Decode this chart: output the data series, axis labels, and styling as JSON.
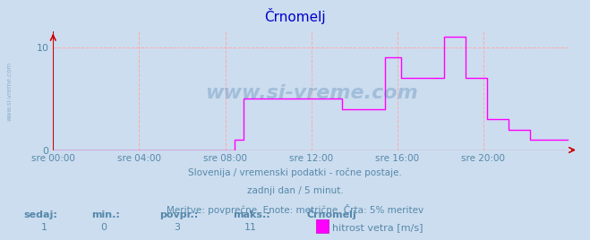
{
  "title": "Črnomelj",
  "title_color": "#0000cc",
  "bg_color": "#ccddef",
  "plot_bg_color": "#ccddef",
  "grid_color": "#ffaaaa",
  "line_color": "#ff00ff",
  "axis_color": "#cc0000",
  "text_color": "#5588aa",
  "watermark_color": "#4477aa",
  "ylim": [
    0,
    11.55
  ],
  "yticks": [
    0,
    10
  ],
  "xlim": [
    0,
    288
  ],
  "subtitle1": "Slovenija / vremenski podatki - ročne postaje.",
  "subtitle2": "zadnji dan / 5 minut.",
  "subtitle3": "Meritve: povprečne  Enote: metrične  Črta: 5% meritev",
  "xtick_labels": [
    "sre 00:00",
    "sre 04:00",
    "sre 08:00",
    "sre 12:00",
    "sre 16:00",
    "sre 20:00"
  ],
  "xtick_positions": [
    0,
    48,
    96,
    144,
    192,
    240
  ],
  "stat_headers": [
    "sedaj:",
    "min.:",
    "povpr.:",
    "maks.:",
    "Črnomelj"
  ],
  "stat_values": [
    "1",
    "0",
    "3",
    "11"
  ],
  "legend_label": "hitrost vetra [m/s]",
  "legend_color": "#ff00ff",
  "watermark": "www.si-vreme.com",
  "side_text": "www.si-vreme.com",
  "data_y": [
    0,
    0,
    0,
    0,
    0,
    0,
    0,
    0,
    0,
    0,
    0,
    0,
    0,
    0,
    0,
    0,
    0,
    0,
    0,
    0,
    0,
    0,
    0,
    0,
    0,
    0,
    0,
    0,
    0,
    0,
    0,
    0,
    0,
    0,
    0,
    0,
    0,
    0,
    0,
    0,
    0,
    0,
    0,
    0,
    0,
    0,
    0,
    0,
    0,
    0,
    0,
    0,
    0,
    0,
    0,
    0,
    0,
    0,
    0,
    0,
    0,
    0,
    0,
    0,
    0,
    0,
    0,
    0,
    0,
    0,
    0,
    0,
    0,
    0,
    0,
    0,
    0,
    0,
    0,
    0,
    0,
    0,
    0,
    0,
    0,
    0,
    0,
    0,
    0,
    0,
    0,
    0,
    0,
    0,
    0,
    0,
    0,
    0,
    0,
    0,
    0,
    1,
    1,
    1,
    1,
    1,
    5,
    5,
    5,
    5,
    5,
    5,
    5,
    5,
    5,
    5,
    5,
    5,
    5,
    5,
    5,
    5,
    5,
    5,
    5,
    5,
    5,
    5,
    5,
    5,
    5,
    5,
    5,
    5,
    5,
    5,
    5,
    5,
    5,
    5,
    5,
    5,
    5,
    5,
    5,
    5,
    5,
    5,
    5,
    5,
    5,
    5,
    5,
    5,
    5,
    5,
    5,
    5,
    5,
    5,
    5,
    4,
    4,
    4,
    4,
    4,
    4,
    4,
    4,
    4,
    4,
    4,
    4,
    4,
    4,
    4,
    4,
    4,
    4,
    4,
    4,
    4,
    4,
    4,
    4,
    9,
    9,
    9,
    9,
    9,
    9,
    9,
    9,
    9,
    7,
    7,
    7,
    7,
    7,
    7,
    7,
    7,
    7,
    7,
    7,
    7,
    7,
    7,
    7,
    7,
    7,
    7,
    7,
    7,
    7,
    7,
    7,
    7,
    11,
    11,
    11,
    11,
    11,
    11,
    11,
    11,
    11,
    11,
    11,
    11,
    7,
    7,
    7,
    7,
    7,
    7,
    7,
    7,
    7,
    7,
    7,
    7,
    3,
    3,
    3,
    3,
    3,
    3,
    3,
    3,
    3,
    3,
    3,
    3,
    2,
    2,
    2,
    2,
    2,
    2,
    2,
    2,
    2,
    2,
    2,
    2,
    1,
    1,
    1,
    1,
    1,
    1,
    1,
    1,
    1,
    1,
    1,
    1,
    1,
    1,
    1,
    1,
    1,
    1,
    1,
    1,
    1,
    1
  ]
}
